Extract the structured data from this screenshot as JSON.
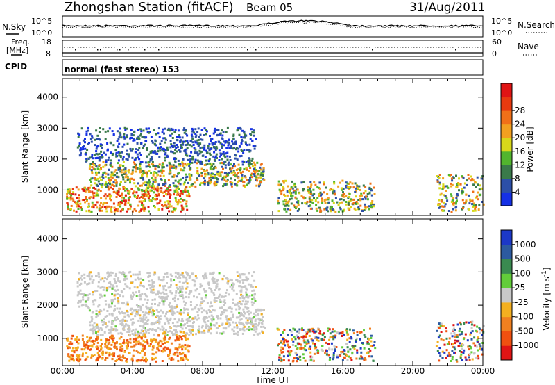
{
  "header": {
    "station": "Zhongshan Station (fitACF)",
    "beam": "Beam 05",
    "date": "31/Aug/2011"
  },
  "top_panels": {
    "nsky_label": "N.Sky",
    "nsky_ticks": [
      "10^5",
      "10^0"
    ],
    "nsearch_label": "N.Search",
    "nsearch_ticks": [
      "10^5",
      "10^0"
    ],
    "freq_label_1": "Freq.",
    "freq_label_2": "[MHz]",
    "freq_ticks": [
      "18",
      "8"
    ],
    "nave_label": "Nave",
    "nave_ticks": [
      "60",
      "0"
    ],
    "cpid_label": "CPID",
    "cpid_text": "normal (fast stereo) 153"
  },
  "chart_data": [
    {
      "type": "heatmap",
      "title": "",
      "xlabel": "Time UT",
      "ylabel": "Slant Range [km]",
      "x_ticks": [
        "00:00",
        "04:00",
        "08:00",
        "12:00",
        "16:00",
        "20:00",
        "00:00"
      ],
      "x_range_hours": [
        0,
        24
      ],
      "y_ticks": [
        1000,
        2000,
        3000,
        4000
      ],
      "ylim": [
        180,
        4600
      ],
      "colorbar_label": "Power [dB]",
      "colorbar_ticks": [
        "4",
        "8",
        "12",
        "16",
        "20",
        "24",
        "28"
      ],
      "colorbar_colors": [
        "#1530e6",
        "#2c4fa8",
        "#3a7a4a",
        "#52b52e",
        "#d8d81a",
        "#f2a020",
        "#f07018",
        "#e83a10",
        "#e01414"
      ],
      "regions": [
        {
          "t": [
            0.2,
            7.2
          ],
          "r": [
            300,
            1100
          ],
          "level": "high"
        },
        {
          "t": [
            1.5,
            11.5
          ],
          "r": [
            1100,
            1900
          ],
          "level": "mid"
        },
        {
          "t": [
            0.8,
            11.0
          ],
          "r": [
            1900,
            3000
          ],
          "level": "low"
        },
        {
          "t": [
            12.2,
            17.8
          ],
          "r": [
            300,
            1300
          ],
          "level": "mid"
        },
        {
          "t": [
            21.3,
            24.0
          ],
          "r": [
            300,
            1500
          ],
          "level": "mid"
        }
      ]
    },
    {
      "type": "heatmap",
      "title": "",
      "xlabel": "Time UT",
      "ylabel": "Slant Range [km]",
      "x_ticks": [
        "00:00",
        "04:00",
        "08:00",
        "12:00",
        "16:00",
        "20:00",
        "00:00"
      ],
      "x_range_hours": [
        0,
        24
      ],
      "y_ticks": [
        1000,
        2000,
        3000,
        4000
      ],
      "ylim": [
        180,
        4600
      ],
      "colorbar_label": "Velocity [m s^-1]",
      "colorbar_ticks": [
        "1000",
        "500",
        "100",
        "25",
        "-25",
        "-100",
        "-500",
        "-1000"
      ],
      "colorbar_colors": [
        "#1c38c8",
        "#2c5aa0",
        "#3a8a50",
        "#62cc3a",
        "#c8c8c8",
        "#f4b020",
        "#f08020",
        "#f05010",
        "#e01414"
      ],
      "regions": [
        {
          "t": [
            0.2,
            7.2
          ],
          "r": [
            300,
            1100
          ],
          "level": "negative"
        },
        {
          "t": [
            1.5,
            11.5
          ],
          "r": [
            1100,
            1900
          ],
          "level": "near-zero"
        },
        {
          "t": [
            0.8,
            11.0
          ],
          "r": [
            1900,
            3000
          ],
          "level": "near-zero"
        },
        {
          "t": [
            12.2,
            17.8
          ],
          "r": [
            300,
            1300
          ],
          "level": "mixed"
        },
        {
          "t": [
            21.3,
            24.0
          ],
          "r": [
            300,
            1500
          ],
          "level": "mixed"
        }
      ]
    }
  ]
}
